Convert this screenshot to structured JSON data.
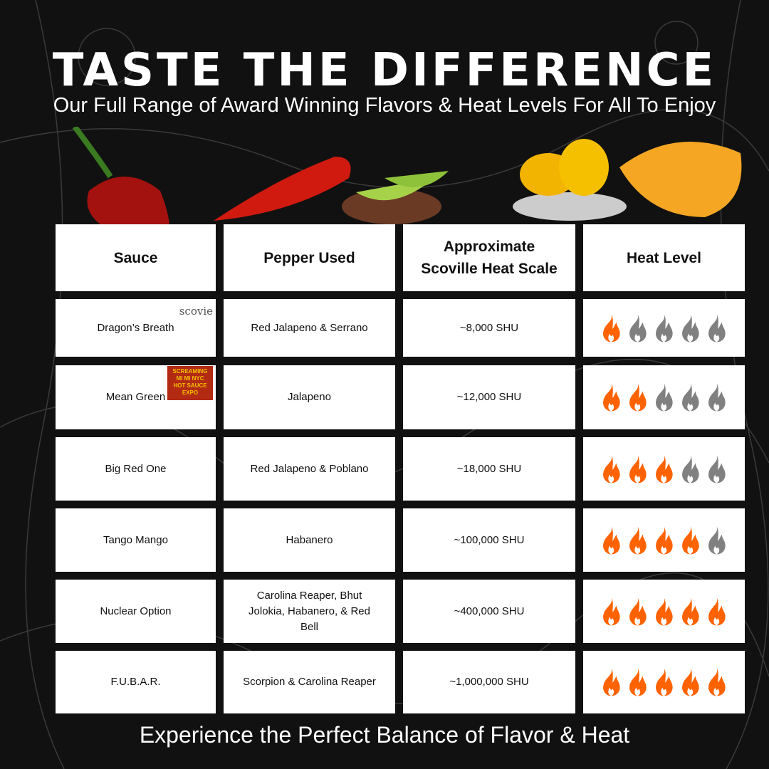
{
  "title": "TASTE THE DIFFERENCE",
  "subtitle": "Our Full Range of Award Winning Flavors & Heat Levels For All To Enjoy",
  "footer": "Experience the Perfect Balance of Flavor & Heat",
  "colors": {
    "flame_on": "#ff6200",
    "flame_off": "#808080",
    "background": "#111111"
  },
  "table": {
    "headers": [
      "Sauce",
      "Pepper Used",
      "Approximate Scoville Heat Scale",
      "Heat Level"
    ],
    "rows": [
      {
        "sauce": "Dragon’s Breath",
        "pepper": "Red Jalapeno & Serrano",
        "shu": "~8,000 SHU",
        "heat": 1,
        "badge": "scovie"
      },
      {
        "sauce": "Mean Green",
        "pepper": "Jalapeno",
        "shu": "~12,000 SHU",
        "heat": 2,
        "badge": "SCREAMING MI MI NYC HOT SAUCE EXPO"
      },
      {
        "sauce": "Big Red One",
        "pepper": "Red Jalapeno & Poblano",
        "shu": "~18,000 SHU",
        "heat": 3
      },
      {
        "sauce": "Tango Mango",
        "pepper": "Habanero",
        "shu": "~100,000 SHU",
        "heat": 4
      },
      {
        "sauce": "Nuclear Option",
        "pepper": "Carolina Reaper, Bhut Jolokia, Habanero, & Red Bell",
        "shu": "~400,000 SHU",
        "heat": 5
      },
      {
        "sauce": "F.U.B.A.R.",
        "pepper": "Scorpion & Carolina Reaper",
        "shu": "~1,000,000 SHU",
        "heat": 5
      }
    ],
    "max_heat": 5
  }
}
